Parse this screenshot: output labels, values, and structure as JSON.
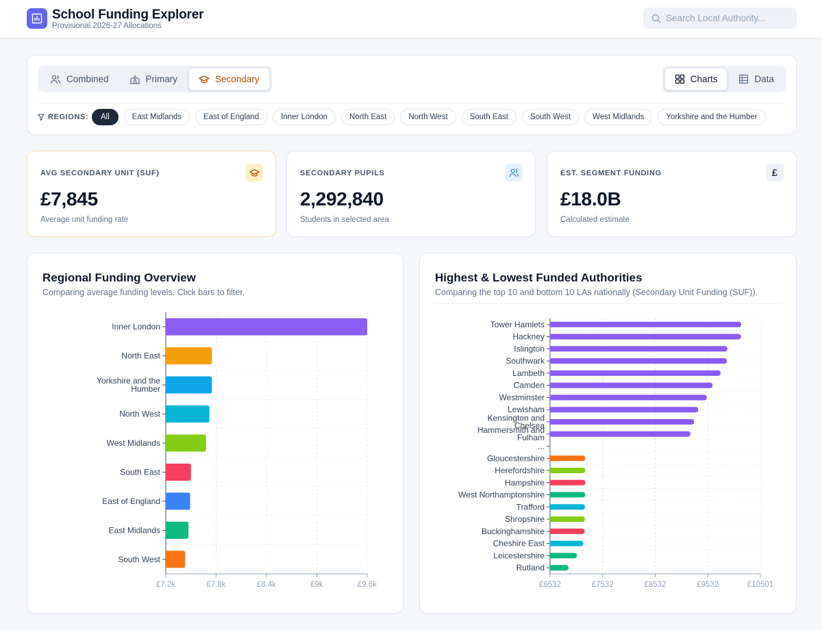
{
  "app": {
    "title": "School Funding Explorer",
    "subtitle": "Provisional 2026-27 Allocations",
    "search_placeholder": "Search Local Authority..."
  },
  "tabs": [
    {
      "label": "Combined",
      "icon": "users-icon",
      "active": false
    },
    {
      "label": "Primary",
      "icon": "school-icon",
      "active": false
    },
    {
      "label": "Secondary",
      "icon": "graduation-cap-icon",
      "active": true
    }
  ],
  "views": [
    {
      "label": "Charts",
      "icon": "grid-icon",
      "active": true
    },
    {
      "label": "Data",
      "icon": "table-icon",
      "active": false
    }
  ],
  "regions": {
    "label": "REGIONS:",
    "items": [
      "All",
      "East Midlands",
      "East of England",
      "Inner London",
      "North East",
      "North West",
      "South East",
      "South West",
      "West Midlands",
      "Yorkshire and the Humber"
    ],
    "active": "All"
  },
  "kpis": [
    {
      "label": "AVG SECONDARY UNIT (SUF)",
      "value": "£7,845",
      "sub": "Average unit funding rate",
      "icon": "graduation-cap-icon",
      "icon_bg": "#fdf0c8",
      "icon_color": "#b45309"
    },
    {
      "label": "SECONDARY PUPILS",
      "value": "2,292,840",
      "sub": "Students in selected area",
      "icon": "users-icon",
      "icon_bg": "#e7f0fd",
      "icon_color": "#3b82f6"
    },
    {
      "label": "EST. SEGMENT FUNDING",
      "value": "£18.0B",
      "sub": "Calculated estimate",
      "icon": "pound-icon",
      "icon_glyph": "£",
      "icon_bg": "#eef1f5",
      "icon_color": "#334155"
    }
  ],
  "regional_chart": {
    "title": "Regional Funding Overview",
    "subtitle": "Comparing average funding levels. Click bars to filter."
  },
  "authorities_chart": {
    "title": "Highest & Lowest Funded Authorities",
    "subtitle": "Comparing the top 10 and bottom 10 LAs nationally (Secondary Unit Funding (SUF))."
  },
  "chart_data": [
    {
      "type": "bar",
      "orientation": "horizontal",
      "title": "Regional Funding Overview",
      "categories": [
        "Inner London",
        "North East",
        "Yorkshire and the Humber",
        "North West",
        "West Midlands",
        "South East",
        "East of England",
        "East Midlands",
        "South West"
      ],
      "values": [
        9600,
        7750,
        7750,
        7720,
        7680,
        7500,
        7490,
        7470,
        7430
      ],
      "colors": [
        "#8b5cf6",
        "#f59e0b",
        "#0ea5e9",
        "#06b6d4",
        "#84cc16",
        "#f43f5e",
        "#3b82f6",
        "#10b981",
        "#f97316"
      ],
      "xlim": [
        7200,
        9600
      ],
      "xticks": [
        "£7.2k",
        "£7.8k",
        "£8.4k",
        "£9k",
        "£9.6k"
      ],
      "grid": true
    },
    {
      "type": "bar",
      "orientation": "horizontal",
      "title": "Highest & Lowest Funded Authorities",
      "categories": [
        "Tower Hamlets",
        "Hackney",
        "Islington",
        "Southwark",
        "Lambeth",
        "Camden",
        "Westminster",
        "Lewisham",
        "Kensington and Chelsea",
        "Hammersmith and Fulham",
        "...",
        "Gloucestershire",
        "Herefordshire",
        "Hampshire",
        "West Northamptonshire",
        "Trafford",
        "Shropshire",
        "Buckinghamshire",
        "Cheshire East",
        "Leicestershire",
        "Rutland"
      ],
      "values": [
        10140,
        10135,
        9880,
        9870,
        9750,
        9600,
        9490,
        9330,
        9250,
        9180,
        null,
        7195,
        7195,
        7195,
        7195,
        7190,
        7190,
        7185,
        7160,
        7040,
        6880
      ],
      "colors": [
        "#8b5cf6",
        "#8b5cf6",
        "#8b5cf6",
        "#8b5cf6",
        "#8b5cf6",
        "#8b5cf6",
        "#8b5cf6",
        "#8b5cf6",
        "#8b5cf6",
        "#8b5cf6",
        null,
        "#f97316",
        "#84cc16",
        "#f43f5e",
        "#10b981",
        "#06b6d4",
        "#84cc16",
        "#f43f5e",
        "#06b6d4",
        "#10b981",
        "#10b981"
      ],
      "xlim": [
        6532,
        10501
      ],
      "xticks": [
        "£6532",
        "£7532",
        "£8532",
        "£9532",
        "£10501"
      ],
      "grid": true
    }
  ]
}
